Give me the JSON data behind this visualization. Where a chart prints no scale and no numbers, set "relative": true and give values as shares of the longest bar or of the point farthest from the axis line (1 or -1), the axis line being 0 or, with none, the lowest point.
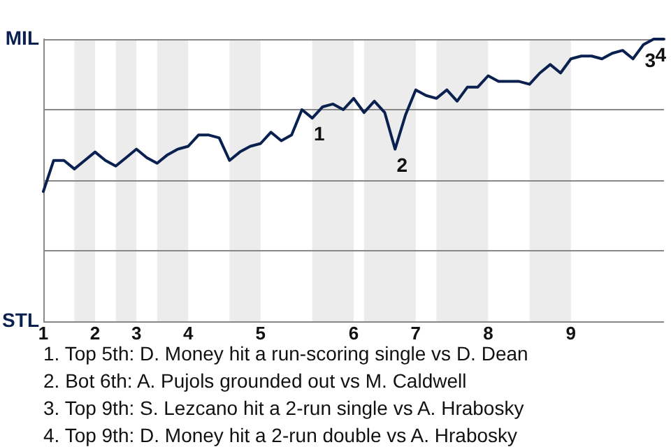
{
  "chart_data": {
    "type": "line",
    "relative": true,
    "categories": [
      "1",
      null,
      null,
      null,
      null,
      "2",
      null,
      null,
      null,
      "3",
      null,
      null,
      null,
      null,
      "4",
      null,
      null,
      null,
      null,
      null,
      null,
      "5",
      null,
      null,
      null,
      null,
      null,
      null,
      null,
      null,
      "6",
      null,
      null,
      null,
      null,
      null,
      "7",
      null,
      null,
      null,
      null,
      null,
      null,
      "8",
      null,
      null,
      null,
      null,
      null,
      null,
      null,
      "9",
      null,
      null,
      null,
      null,
      null,
      null,
      null,
      null,
      null
    ],
    "grid": "y",
    "marker": "none",
    "line_style": "solid",
    "series": [
      {
        "color": "#0a2150",
        "values": [
          0.46,
          0.57,
          0.57,
          0.54,
          0.57,
          0.6,
          0.57,
          0.55,
          0.58,
          0.61,
          0.58,
          0.56,
          0.59,
          0.61,
          0.62,
          0.66,
          0.66,
          0.65,
          0.57,
          0.6,
          0.62,
          0.63,
          0.67,
          0.64,
          0.66,
          0.75,
          0.72,
          0.76,
          0.77,
          0.75,
          0.79,
          0.74,
          0.78,
          0.74,
          0.61,
          0.73,
          0.82,
          0.8,
          0.79,
          0.82,
          0.78,
          0.83,
          0.83,
          0.87,
          0.85,
          0.85,
          0.85,
          0.84,
          0.88,
          0.91,
          0.88,
          0.93,
          0.94,
          0.94,
          0.93,
          0.95,
          0.96,
          0.93,
          0.98,
          1,
          1
        ]
      }
    ],
    "annotations": [
      "MIL",
      "STL",
      {
        "text": "1",
        "y": 0.72
      },
      {
        "text": "2",
        "y": 0.61
      },
      {
        "text": "3",
        "y": 0.98
      },
      {
        "text": "4",
        "y": 1
      },
      "1. Top 5th: D. Money hit a run-scoring single vs D. Dean",
      "2. Bot 6th: A. Pujols grounded out vs M. Caldwell",
      "3. Top 9th: S. Lezcano hit a 2-run single vs A. Hrabosky",
      "4. Top 9th: D. Money hit a 2-run double vs A. Hrabosky"
    ]
  }
}
